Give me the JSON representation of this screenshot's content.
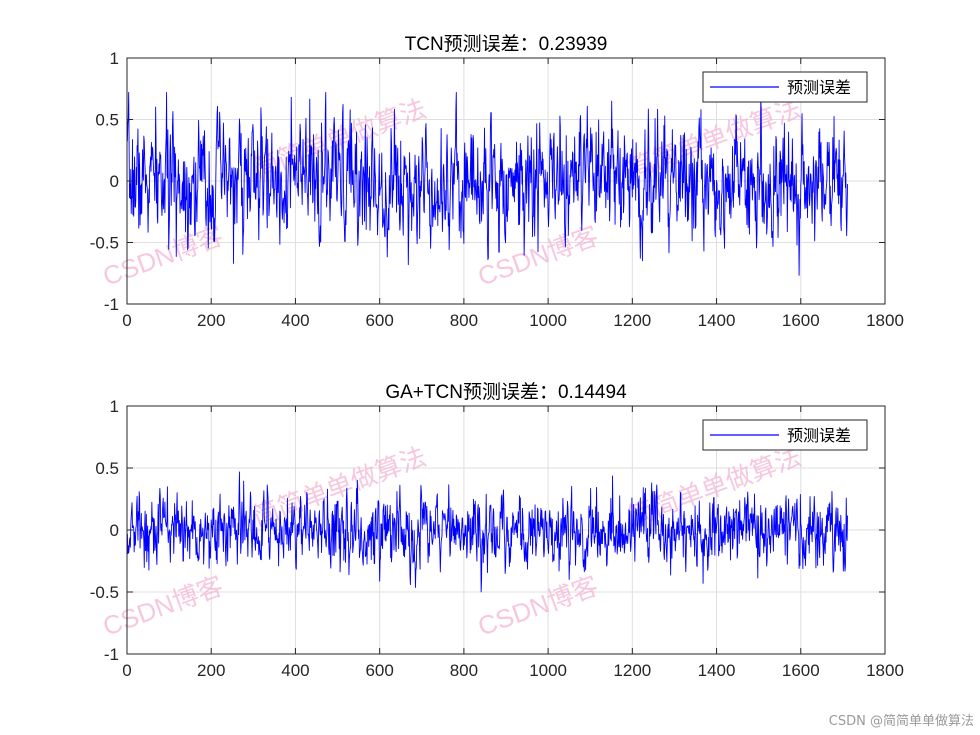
{
  "chart_data": [
    {
      "type": "line",
      "title": "TCN预测误差：0.23939",
      "xlabel": "",
      "ylabel": "",
      "xlim": [
        0,
        1800
      ],
      "ylim": [
        -1,
        1
      ],
      "xticks": [
        0,
        200,
        400,
        600,
        800,
        1000,
        1200,
        1400,
        1600,
        1800
      ],
      "yticks": [
        -1,
        -0.5,
        0,
        0.5,
        1
      ],
      "xtick_labels": [
        "0",
        "200",
        "400",
        "600",
        "800",
        "1000",
        "1200",
        "1400",
        "1600",
        "1800"
      ],
      "ytick_labels": [
        "-1",
        "-0.5",
        "0",
        "0.5",
        "1"
      ],
      "grid": true,
      "legend_position": "top-right",
      "series": [
        {
          "name": "预测误差",
          "color": "#0000ff",
          "n_points": 1712,
          "std_estimate": 0.24,
          "seed": 7
        }
      ],
      "watermarks": [
        "CSDN博客",
        "CSDN博客",
        "简简单单做算法",
        "简简单单做算法"
      ]
    },
    {
      "type": "line",
      "title": "GA+TCN预测误差：0.14494",
      "xlabel": "",
      "ylabel": "",
      "xlim": [
        0,
        1800
      ],
      "ylim": [
        -1,
        1
      ],
      "xticks": [
        0,
        200,
        400,
        600,
        800,
        1000,
        1200,
        1400,
        1600,
        1800
      ],
      "yticks": [
        -1,
        -0.5,
        0,
        0.5,
        1
      ],
      "xtick_labels": [
        "0",
        "200",
        "400",
        "600",
        "800",
        "1000",
        "1200",
        "1400",
        "1600",
        "1800"
      ],
      "ytick_labels": [
        "-1",
        "-0.5",
        "0",
        "0.5",
        "1"
      ],
      "grid": true,
      "legend_position": "top-right",
      "series": [
        {
          "name": "预测误差",
          "color": "#0000ff",
          "n_points": 1712,
          "std_estimate": 0.145,
          "seed": 13
        }
      ],
      "watermarks": [
        "CSDN博客",
        "CSDN博客",
        "简简单单做算法",
        "简简单单做算法"
      ]
    }
  ],
  "footer": "CSDN @简简单单做算法"
}
